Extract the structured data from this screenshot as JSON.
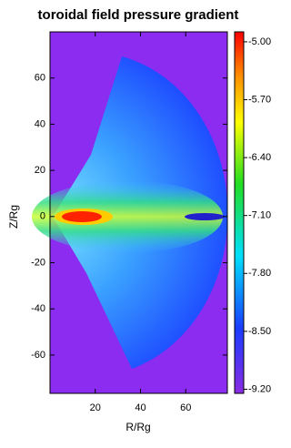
{
  "chart_data": {
    "type": "heatmap",
    "title": "toroidal field pressure gradient",
    "x_label": "R/Rg",
    "y_label": "Z/Rg",
    "xlim": [
      0,
      78.4
    ],
    "ylim": [
      -76.6,
      80
    ],
    "xticks": [
      20,
      40,
      60
    ],
    "yticks": [
      -60,
      -40,
      -20,
      0,
      20,
      40,
      60
    ],
    "colorbar": {
      "lim": [
        -9.25,
        -4.88
      ],
      "ticks": [
        {
          "value": -5.0,
          "label": "-5.00"
        },
        {
          "value": -5.7,
          "label": "-5.70"
        },
        {
          "value": -6.4,
          "label": "-6.40"
        },
        {
          "value": -7.1,
          "label": "-7.10"
        },
        {
          "value": -7.8,
          "label": "-7.80"
        },
        {
          "value": -8.5,
          "label": "-8.50"
        },
        {
          "value": -9.2,
          "label": "-9.20"
        }
      ]
    }
  }
}
